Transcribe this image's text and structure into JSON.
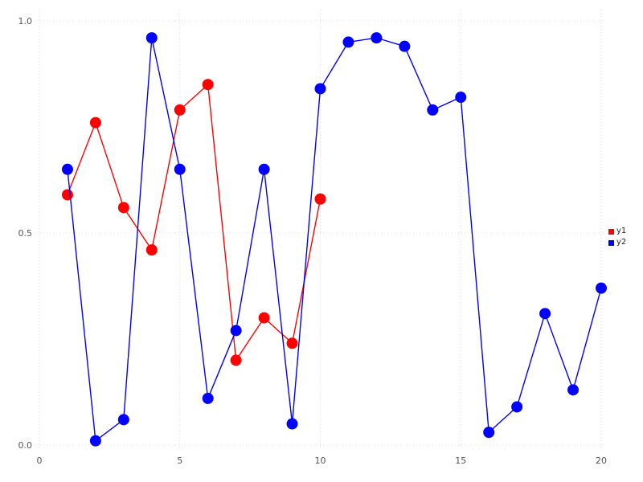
{
  "chart_data": {
    "type": "line",
    "title": "",
    "xlabel": "",
    "ylabel": "",
    "xlim": [
      0,
      20
    ],
    "ylim": [
      0.0,
      1.0
    ],
    "grid": true,
    "legend_position": "right-outside",
    "xticks": [
      0,
      5,
      10,
      15,
      20
    ],
    "xtick_labels": [
      "0",
      "5",
      "10",
      "15",
      "20"
    ],
    "yticks": [
      0.0,
      0.5,
      1.0
    ],
    "ytick_labels": [
      "0.0",
      "0.5",
      "1.0"
    ],
    "series": [
      {
        "name": "y1",
        "color": "#ff0000",
        "marker": "circle",
        "x": [
          1,
          2,
          3,
          4,
          5,
          6,
          7,
          8,
          9,
          10
        ],
        "values": [
          0.59,
          0.76,
          0.56,
          0.46,
          0.79,
          0.85,
          0.2,
          0.3,
          0.24,
          0.58
        ]
      },
      {
        "name": "y2",
        "color": "#0000ff",
        "marker": "circle",
        "x": [
          1,
          2,
          3,
          4,
          5,
          6,
          7,
          8,
          9,
          10,
          11,
          12,
          13,
          14,
          15,
          16,
          17,
          18,
          19,
          20
        ],
        "values": [
          0.65,
          0.01,
          0.06,
          0.96,
          0.65,
          0.11,
          0.27,
          0.65,
          0.05,
          0.84,
          0.95,
          0.96,
          0.94,
          0.79,
          0.82,
          0.03,
          0.09,
          0.31,
          0.13,
          0.37
        ]
      }
    ]
  },
  "legend": {
    "items": [
      {
        "label": "y1",
        "color": "#ff0000"
      },
      {
        "label": "y2",
        "color": "#0000ff"
      }
    ]
  },
  "colors": {
    "background": "#ffffff",
    "gridline": "#d8d8d8",
    "tick_label": "#555555"
  }
}
